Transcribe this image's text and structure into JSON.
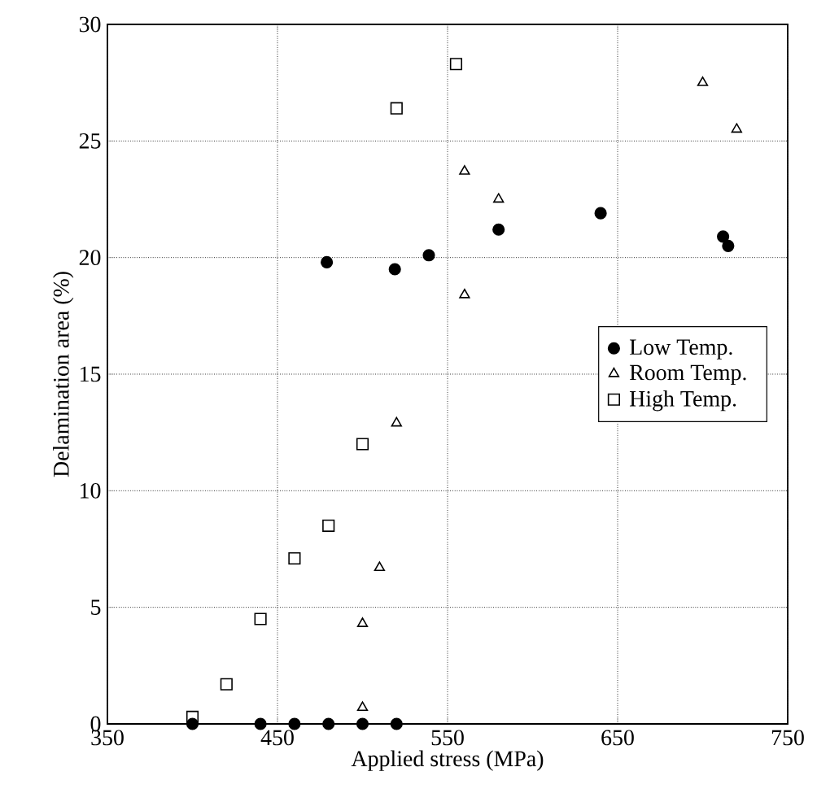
{
  "chart_data": {
    "type": "scatter",
    "xlabel": "Applied stress (MPa)",
    "ylabel": "Delamination area (%)",
    "xlim": [
      350,
      750
    ],
    "xticks": [
      350,
      450,
      550,
      650,
      750
    ],
    "ylim": [
      0,
      30
    ],
    "yticks": [
      0,
      5,
      10,
      15,
      20,
      25,
      30
    ],
    "grid": true,
    "legend": "right",
    "series": [
      {
        "name": "Low Temp.",
        "color": "#000000",
        "marker": "circle",
        "x": [
          479,
          519,
          539,
          580,
          640,
          712,
          715,
          400,
          440,
          460,
          480,
          500,
          520
        ],
        "values": [
          19.8,
          19.5,
          20.1,
          21.2,
          21.9,
          20.9,
          20.5,
          0,
          0,
          0,
          0,
          0,
          0
        ]
      },
      {
        "name": "Room Temp.",
        "color": "#000000",
        "marker": "triangle",
        "x": [
          520,
          510,
          500,
          500,
          560,
          560,
          580,
          700,
          720
        ],
        "values": [
          12.9,
          6.7,
          4.3,
          0.7,
          23.7,
          18.4,
          22.5,
          27.5,
          25.5
        ]
      },
      {
        "name": "High Temp.",
        "color": "#000000",
        "marker": "square",
        "x": [
          400,
          420,
          440,
          460,
          480,
          500,
          520,
          555
        ],
        "values": [
          0.3,
          1.7,
          4.5,
          7.1,
          8.5,
          12.0,
          26.4,
          28.3
        ]
      }
    ]
  }
}
